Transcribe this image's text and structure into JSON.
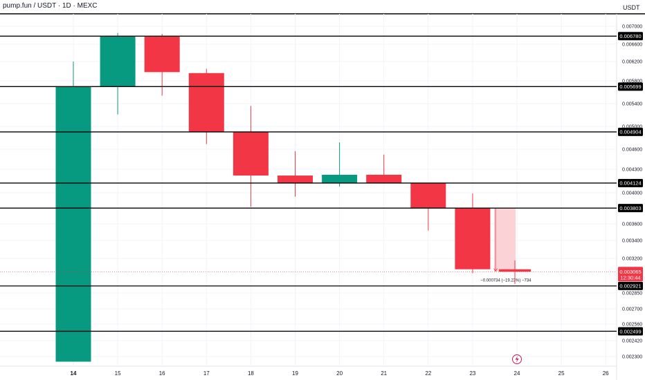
{
  "header": {
    "title": "pump.fun / USDT · 1D · MEXC"
  },
  "price_scale": {
    "unit": "USDT"
  },
  "colors": {
    "up": "#089981",
    "down": "#f23645",
    "level_line": "#000000",
    "label_bg": "#000000",
    "last_price": "#f23645",
    "measure_fill": "#fbd3d6",
    "grid": "#f0f3fa"
  },
  "chart_data": {
    "type": "candlestick",
    "x_labels": [
      "14",
      "15",
      "16",
      "17",
      "18",
      "19",
      "20",
      "21",
      "22",
      "23",
      "24",
      "25",
      "26"
    ],
    "y_ticks": [
      "0.007000",
      "0.006600",
      "0.006200",
      "0.005800",
      "0.005400",
      "0.005000",
      "0.004600",
      "0.004300",
      "0.004000",
      "0.003600",
      "0.003400",
      "0.003200",
      "0.002850",
      "0.002700",
      "0.002560",
      "0.002420",
      "0.002300"
    ],
    "candles": [
      {
        "date": "14",
        "open": 0.002261,
        "high": 0.0062,
        "low": 0.002261,
        "close": 0.005699
      },
      {
        "date": "15",
        "open": 0.005699,
        "high": 0.00685,
        "low": 0.00521,
        "close": 0.00678
      },
      {
        "date": "16",
        "open": 0.00678,
        "high": 0.00683,
        "low": 0.00554,
        "close": 0.00598
      },
      {
        "date": "17",
        "open": 0.00596,
        "high": 0.00605,
        "low": 0.00469,
        "close": 0.004904
      },
      {
        "date": "18",
        "open": 0.004904,
        "high": 0.00536,
        "low": 0.00382,
        "close": 0.00422
      },
      {
        "date": "19",
        "open": 0.00422,
        "high": 0.00457,
        "low": 0.00395,
        "close": 0.004124
      },
      {
        "date": "20",
        "open": 0.004124,
        "high": 0.00472,
        "low": 0.00408,
        "close": 0.00423
      },
      {
        "date": "21",
        "open": 0.00423,
        "high": 0.00452,
        "low": 0.004124,
        "close": 0.004124
      },
      {
        "date": "22",
        "open": 0.004124,
        "high": 0.004124,
        "low": 0.00352,
        "close": 0.003803
      },
      {
        "date": "23",
        "open": 0.003803,
        "high": 0.00399,
        "low": 0.00305,
        "close": 0.00309
      },
      {
        "date": "24",
        "open": 0.00309,
        "high": 0.00318,
        "low": 0.00294,
        "close": 0.003065
      }
    ],
    "levels": [
      "0.006780",
      "0.005699",
      "0.004904",
      "0.004124",
      "0.003803",
      "0.002921",
      "0.002499"
    ],
    "last_price": {
      "value": "0.003065",
      "countdown": "12:30:44",
      "level": 0.003065
    },
    "measure": {
      "from": 0.003803,
      "to": 0.00307,
      "label": "−0.000734 (−19.23%) −734"
    }
  }
}
